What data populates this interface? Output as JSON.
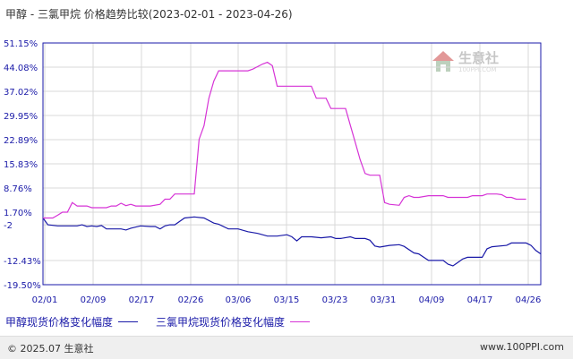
{
  "title": {
    "text": "甲醇 - 三氯甲烷 价格趋势比较",
    "range": "(2023-02-01 - 2023-04-26)"
  },
  "watermark": {
    "brand": "生意社",
    "url": "100PPI.COM",
    "icon": "house-logo-icon"
  },
  "footer": {
    "copyright": "© 2025.07 生意社",
    "url": "www.100PPI.com"
  },
  "colors": {
    "methanol": "#1a1aa8",
    "chloroform": "#d633d6",
    "axis": "#1a1aa8",
    "grid": "#d8d8d8"
  },
  "chart_data": {
    "type": "line",
    "title": "甲醇 - 三氯甲烷 价格趋势比较",
    "subtitle": "(2023-02-01 - 2023-04-26)",
    "y_ticks": [
      "51.15%",
      "44.08%",
      "37.02%",
      "29.95%",
      "22.89%",
      "15.83%",
      "8.76%",
      "1.70%",
      "-2",
      "-12.43%",
      "-19.50%"
    ],
    "y_tick_values": [
      51.15,
      44.08,
      37.02,
      29.95,
      22.89,
      15.83,
      8.76,
      1.7,
      -2,
      -12.43,
      -19.5
    ],
    "ylim": [
      -19.5,
      51.15
    ],
    "x_ticks": [
      "02/01",
      "02/09",
      "02/17",
      "02/26",
      "03/06",
      "03/15",
      "03/23",
      "03/31",
      "04/09",
      "04/17",
      "04/26"
    ],
    "x_tick_days": [
      0,
      8,
      16,
      25,
      33,
      42,
      50,
      58,
      67,
      75,
      84
    ],
    "xlim_days": [
      0,
      84
    ],
    "grid": true,
    "legend_position": "bottom-left",
    "series": [
      {
        "name": "甲醇现货价格变化幅度",
        "key": "methanol",
        "points": [
          [
            0,
            0
          ],
          [
            1,
            -2
          ],
          [
            3,
            -2.3
          ],
          [
            5,
            -2.3
          ],
          [
            7,
            -2.3
          ],
          [
            8,
            -2
          ],
          [
            9,
            -2.5
          ],
          [
            10,
            -2.3
          ],
          [
            11,
            -2.5
          ],
          [
            12,
            -2.2
          ],
          [
            13,
            -3.2
          ],
          [
            14,
            -3.2
          ],
          [
            16,
            -3.2
          ],
          [
            17,
            -3.5
          ],
          [
            18,
            -3.0
          ],
          [
            20,
            -2.3
          ],
          [
            22,
            -2.5
          ],
          [
            23,
            -2.5
          ],
          [
            24,
            -3.2
          ],
          [
            25,
            -2.3
          ],
          [
            26,
            -2.0
          ],
          [
            27,
            -2.0
          ],
          [
            29,
            0
          ],
          [
            31,
            0.3
          ],
          [
            33,
            0
          ],
          [
            35,
            -1.5
          ],
          [
            36,
            -1.8
          ],
          [
            38,
            -3.2
          ],
          [
            40,
            -3.2
          ],
          [
            42,
            -4.0
          ],
          [
            44,
            -4.5
          ],
          [
            46,
            -5.3
          ],
          [
            48,
            -5.3
          ],
          [
            50,
            -4.9
          ],
          [
            51,
            -5.5
          ],
          [
            52,
            -6.7
          ],
          [
            53,
            -5.5
          ],
          [
            55,
            -5.5
          ],
          [
            57,
            -5.8
          ],
          [
            59,
            -5.5
          ],
          [
            60,
            -6.0
          ],
          [
            61,
            -6.0
          ],
          [
            63,
            -5.5
          ],
          [
            64,
            -6.0
          ],
          [
            66,
            -6.0
          ],
          [
            67,
            -6.5
          ],
          [
            68,
            -8.2
          ],
          [
            69,
            -8.5
          ],
          [
            71,
            -8.0
          ],
          [
            73,
            -7.8
          ],
          [
            74,
            -8.3
          ],
          [
            76,
            -10.2
          ],
          [
            77,
            -10.5
          ],
          [
            79,
            -12.4
          ],
          [
            82,
            -12.4
          ],
          [
            83,
            -13.5
          ],
          [
            84,
            -14.0
          ],
          [
            85,
            -13.0
          ],
          [
            86,
            -12.0
          ],
          [
            87,
            -11.5
          ],
          [
            90,
            -11.5
          ],
          [
            91,
            -9.0
          ],
          [
            92,
            -8.4
          ],
          [
            95,
            -8.0
          ],
          [
            96,
            -7.3
          ],
          [
            99,
            -7.3
          ],
          [
            100,
            -8.0
          ],
          [
            101,
            -9.5
          ],
          [
            102,
            -10.5
          ]
        ]
      },
      {
        "name": "三氯甲烷现货价格变化幅度",
        "key": "chloroform",
        "points": [
          [
            0,
            0
          ],
          [
            2,
            0
          ],
          [
            3,
            0.8
          ],
          [
            4,
            1.7
          ],
          [
            5,
            1.7
          ],
          [
            6,
            4.5
          ],
          [
            7,
            3.5
          ],
          [
            9,
            3.5
          ],
          [
            10,
            3.0
          ],
          [
            11,
            3.0
          ],
          [
            13,
            3.0
          ],
          [
            14,
            3.5
          ],
          [
            15,
            3.5
          ],
          [
            16,
            4.3
          ],
          [
            17,
            3.6
          ],
          [
            18,
            4.0
          ],
          [
            19,
            3.5
          ],
          [
            20,
            3.5
          ],
          [
            22,
            3.5
          ],
          [
            24,
            4.0
          ],
          [
            25,
            5.5
          ],
          [
            26,
            5.5
          ],
          [
            27,
            7.0
          ],
          [
            28,
            7.0
          ],
          [
            30,
            7.0
          ],
          [
            31,
            7.0
          ],
          [
            32,
            23.0
          ],
          [
            33,
            27.0
          ],
          [
            34,
            35.0
          ],
          [
            35,
            40.0
          ],
          [
            36,
            43.0
          ],
          [
            37,
            43.0
          ],
          [
            40,
            43.0
          ],
          [
            42,
            43.0
          ],
          [
            43,
            43.5
          ],
          [
            45,
            45.0
          ],
          [
            46,
            45.5
          ],
          [
            47,
            44.5
          ],
          [
            48,
            38.5
          ],
          [
            49,
            38.5
          ],
          [
            51,
            38.5
          ],
          [
            53,
            38.5
          ],
          [
            55,
            38.5
          ],
          [
            56,
            35.0
          ],
          [
            57,
            35.0
          ],
          [
            58,
            35.0
          ],
          [
            59,
            32.0
          ],
          [
            60,
            32.0
          ],
          [
            62,
            32.0
          ],
          [
            63,
            27.0
          ],
          [
            64,
            22.0
          ],
          [
            65,
            17.0
          ],
          [
            66,
            13.0
          ],
          [
            67,
            12.5
          ],
          [
            69,
            12.5
          ],
          [
            70,
            4.5
          ],
          [
            71,
            4.0
          ],
          [
            73,
            3.7
          ],
          [
            74,
            6.0
          ],
          [
            75,
            6.5
          ],
          [
            76,
            6.0
          ],
          [
            77,
            6.0
          ],
          [
            79,
            6.5
          ],
          [
            81,
            6.5
          ],
          [
            82,
            6.5
          ],
          [
            83,
            6.0
          ],
          [
            84,
            6.0
          ],
          [
            87,
            6.0
          ],
          [
            88,
            6.5
          ],
          [
            90,
            6.5
          ],
          [
            91,
            7.0
          ],
          [
            93,
            7.0
          ],
          [
            94,
            6.8
          ],
          [
            95,
            6.0
          ],
          [
            96,
            6.0
          ],
          [
            97,
            5.5
          ],
          [
            99,
            5.5
          ]
        ]
      }
    ]
  }
}
